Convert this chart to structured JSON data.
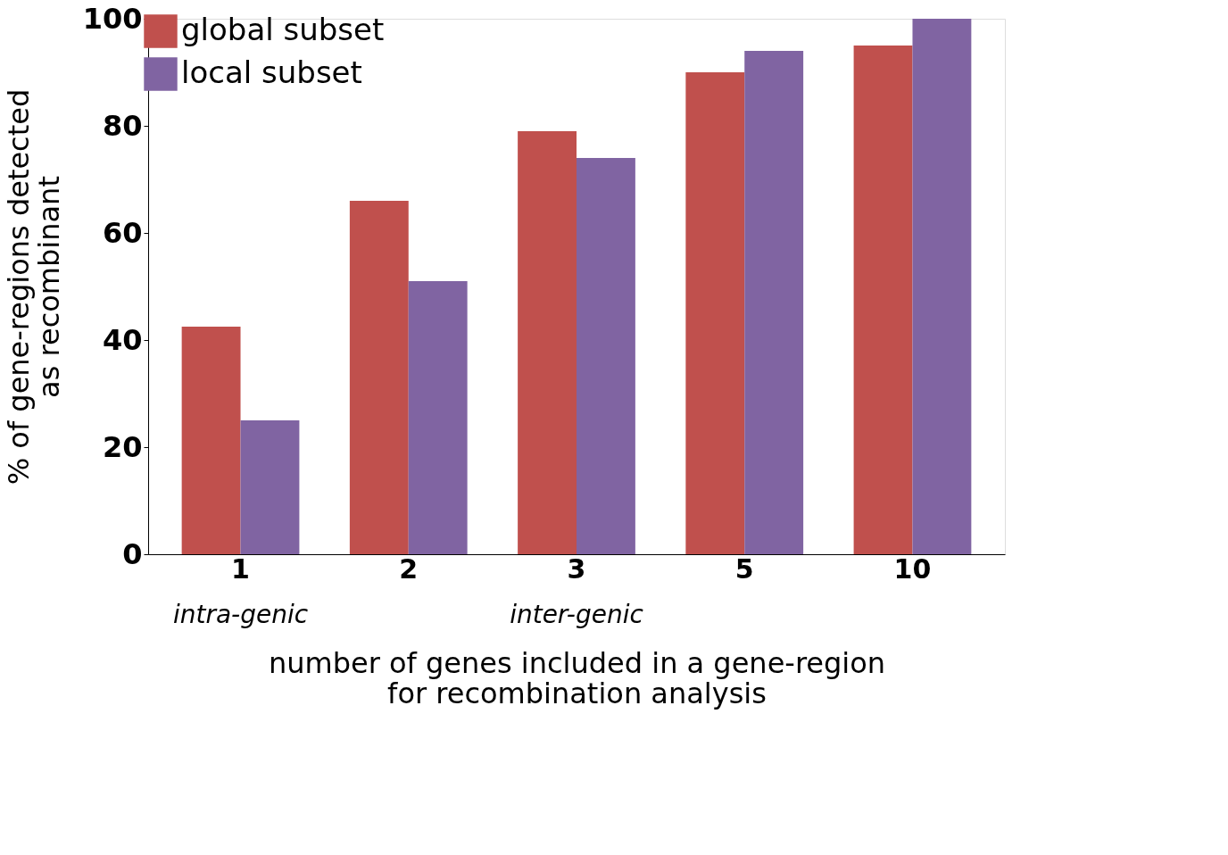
{
  "chart_data": {
    "type": "bar",
    "xlabel": "number of genes included in a gene-region\nfor recombination analysis",
    "ylabel": "% of gene-regions detected\nas recombinant",
    "categories": [
      "1",
      "2",
      "3",
      "5",
      "10"
    ],
    "series": [
      {
        "name": "global subset",
        "color": "#c0504d",
        "values": [
          42.5,
          66,
          79,
          90,
          95
        ]
      },
      {
        "name": "local subset",
        "color": "#8064a2",
        "values": [
          25,
          51,
          74,
          94,
          100
        ]
      }
    ],
    "ylim": [
      0,
      100
    ],
    "yticks": [
      0,
      20,
      40,
      60,
      80,
      100
    ],
    "grid": false,
    "legend": "top left",
    "annotations": [
      "intra-genic",
      "inter-genic"
    ]
  }
}
